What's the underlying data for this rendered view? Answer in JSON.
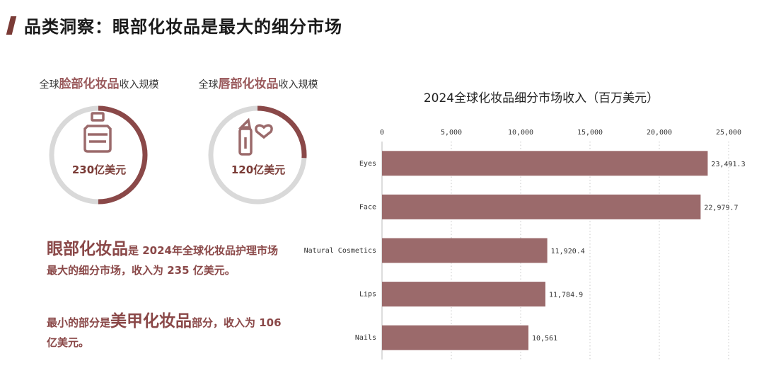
{
  "header": {
    "title": "品类洞察：眼部化妆品是最大的细分市场"
  },
  "rings": [
    {
      "prefix": "全球",
      "highlight": "脸部化妆品",
      "suffix": "收入规模",
      "value": "230亿美元",
      "fill": 0.5,
      "icon": "cosmetic-bottle-icon"
    },
    {
      "prefix": "全球",
      "highlight": "唇部化妆品",
      "suffix": "收入规模",
      "value": "120亿美元",
      "fill": 0.26,
      "icon": "lipstick-heart-icon"
    }
  ],
  "summary": {
    "p1_big": "眼部化妆品",
    "p1_rest": "是 2024年全球化妆品护理市场最大的细分市场，收入为 235 亿美元。",
    "p2_pre": "最小的部分是",
    "p2_big": "美甲化妆品",
    "p2_rest": "部分，收入为 106 亿美元。"
  },
  "colors": {
    "accent": "#9b6a6b",
    "dark_accent": "#7a3b36",
    "ring_track": "#d9d9d9"
  },
  "chart_data": {
    "type": "bar",
    "orientation": "horizontal",
    "title": "2024全球化妆品细分市场收入（百万美元）",
    "categories": [
      "Eyes",
      "Face",
      "Natural Cosmetics",
      "Lips",
      "Nails"
    ],
    "values": [
      23491.3,
      22979.7,
      11920.4,
      11784.9,
      10561
    ],
    "value_labels": [
      "23,491.3",
      "22,979.7",
      "11,920.4",
      "11,784.9",
      "10,561"
    ],
    "xlim": [
      0,
      25000
    ],
    "x_ticks": [
      0,
      5000,
      10000,
      15000,
      20000,
      25000
    ],
    "x_tick_labels": [
      "0",
      "5,000",
      "10,000",
      "15,000",
      "20,000",
      "25,000"
    ],
    "axis_position": "top",
    "grid": "vertical-dotted",
    "bar_color": "#9b6a6b"
  }
}
